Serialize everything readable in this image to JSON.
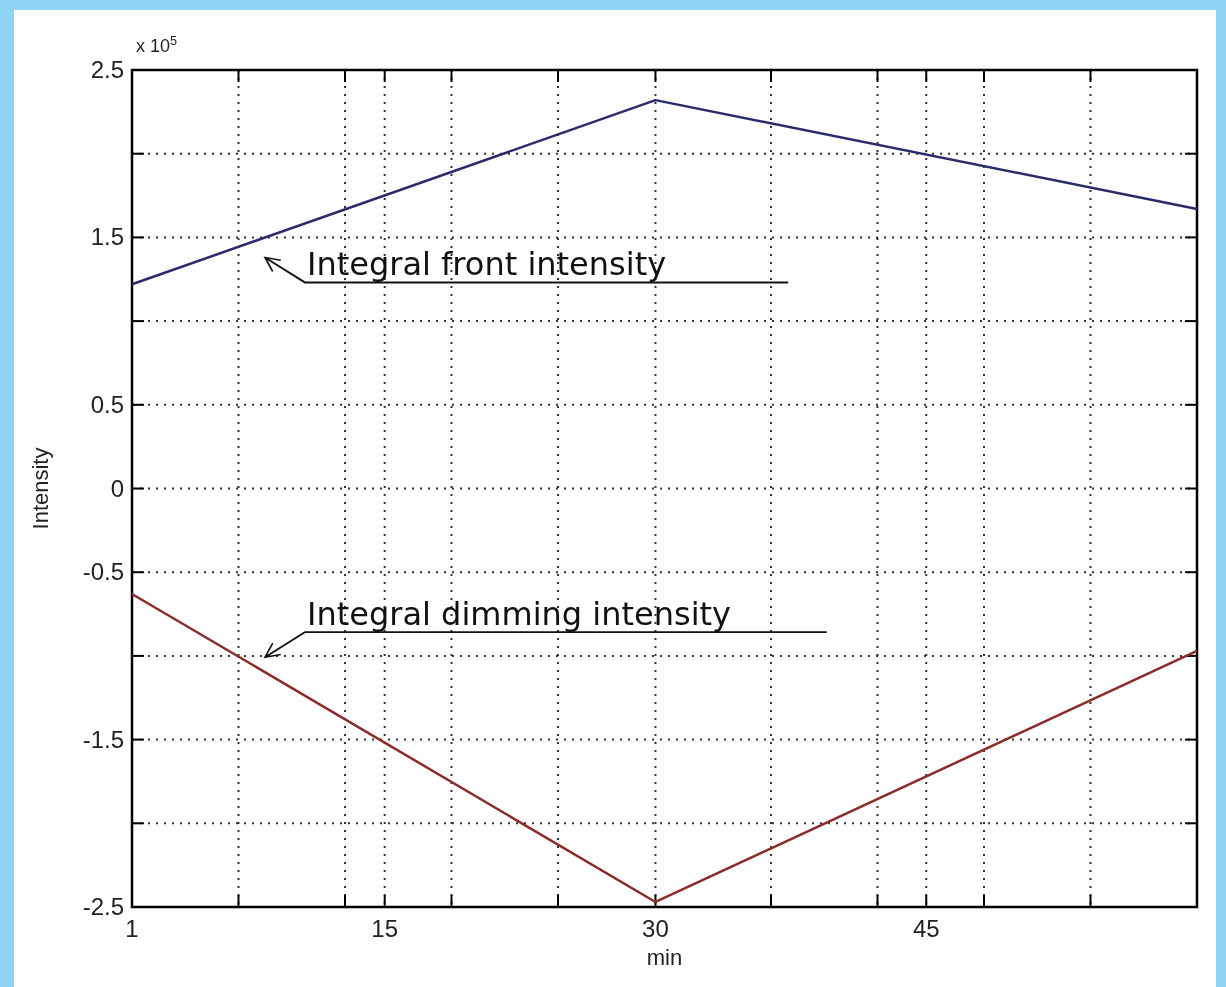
{
  "chart_data": {
    "type": "line",
    "xlabel": "min",
    "ylabel": "Intensity",
    "x": [
      1,
      30,
      60
    ],
    "series": [
      {
        "color": "#2b2b6b",
        "values": [
          1.22,
          2.32,
          1.67
        ]
      },
      {
        "color": "#8b2b2b",
        "values": [
          -0.63,
          -2.47,
          -0.97
        ]
      }
    ],
    "xlim": [
      1,
      60
    ],
    "xticks": [
      1,
      {
        "value": 6.9,
        "label": null
      },
      {
        "value": 12.8,
        "label": null
      },
      15,
      {
        "value": 18.7,
        "label": null
      },
      {
        "value": 24.6,
        "label": null
      },
      30,
      {
        "value": 36.4,
        "label": null
      },
      {
        "value": 42.3,
        "label": null
      },
      45,
      {
        "value": 48.2,
        "label": null
      },
      {
        "value": 54.1,
        "label": null
      },
      {
        "value": 60,
        "label": null
      }
    ],
    "ylim": [
      -2.5,
      2.5
    ],
    "yticks": [
      -2.5,
      {
        "value": -2,
        "label": null
      },
      -1.5,
      {
        "value": -1,
        "label": null
      },
      -0.5,
      0,
      0.5,
      {
        "value": 1,
        "label": null
      },
      1.5,
      {
        "value": 2,
        "label": null
      },
      2.5
    ],
    "grid": true,
    "marker": "none",
    "line_style": "solid",
    "annotations": [
      "x 10$^{5}$",
      "Integral front intensity",
      "Integral dimming intensity"
    ]
  }
}
